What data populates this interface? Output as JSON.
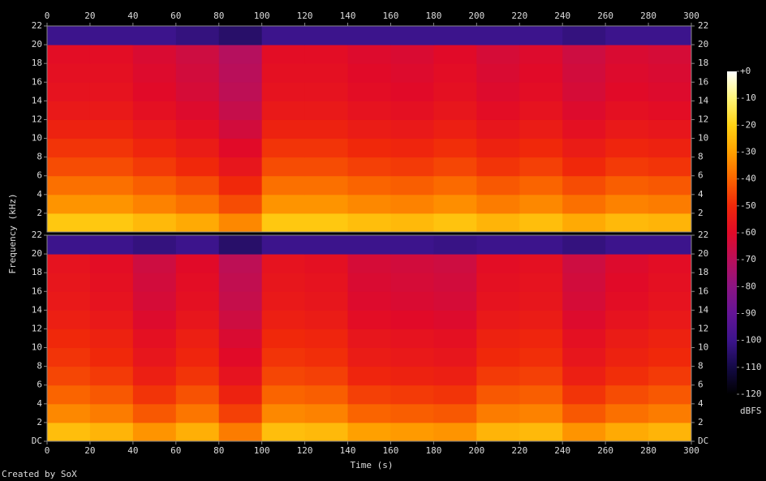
{
  "chart_data": [
    {
      "type": "heatmap",
      "xlim": [
        0,
        300
      ],
      "xticks": [
        0,
        20,
        40,
        60,
        80,
        100,
        120,
        140,
        160,
        180,
        200,
        220,
        240,
        260,
        280,
        300
      ],
      "ylim": [
        0,
        22
      ],
      "yticks": [
        2,
        4,
        6,
        8,
        10,
        12,
        14,
        16,
        18,
        20,
        22
      ],
      "xbins": [
        0,
        20,
        40,
        60,
        80,
        100,
        120,
        140,
        160,
        180,
        200,
        220,
        240,
        260,
        280,
        300
      ],
      "ybins": [
        0,
        2,
        4,
        6,
        8,
        10,
        12,
        14,
        16,
        18,
        20,
        22
      ],
      "values": [
        [
          -22,
          -22,
          -25,
          -28,
          -34,
          -22,
          -22,
          -24,
          -25,
          -23,
          -26,
          -24,
          -28,
          -25,
          -26
        ],
        [
          -32,
          -32,
          -35,
          -38,
          -44,
          -32,
          -32,
          -34,
          -35,
          -33,
          -36,
          -34,
          -38,
          -35,
          -36
        ],
        [
          -38,
          -38,
          -41,
          -44,
          -50,
          -38,
          -38,
          -40,
          -41,
          -39,
          -42,
          -40,
          -44,
          -41,
          -42
        ],
        [
          -44,
          -44,
          -47,
          -50,
          -56,
          -44,
          -44,
          -46,
          -47,
          -45,
          -48,
          -46,
          -50,
          -47,
          -48
        ],
        [
          -48,
          -48,
          -51,
          -54,
          -60,
          -48,
          -48,
          -50,
          -51,
          -49,
          -52,
          -50,
          -54,
          -51,
          -52
        ],
        [
          -52,
          -52,
          -55,
          -58,
          -64,
          -52,
          -52,
          -54,
          -55,
          -53,
          -56,
          -54,
          -58,
          -55,
          -56
        ],
        [
          -55,
          -55,
          -58,
          -61,
          -67,
          -55,
          -55,
          -57,
          -58,
          -56,
          -59,
          -57,
          -61,
          -58,
          -59
        ],
        [
          -57,
          -57,
          -60,
          -63,
          -69,
          -57,
          -57,
          -59,
          -60,
          -58,
          -61,
          -59,
          -63,
          -60,
          -61
        ],
        [
          -58,
          -58,
          -61,
          -64,
          -70,
          -58,
          -58,
          -60,
          -61,
          -59,
          -62,
          -60,
          -64,
          -61,
          -62
        ],
        [
          -59,
          -59,
          -62,
          -65,
          -71,
          -59,
          -59,
          -61,
          -62,
          -60,
          -63,
          -61,
          -65,
          -62,
          -63
        ],
        [
          -100,
          -100,
          -100,
          -102,
          -105,
          -100,
          -100,
          -100,
          -100,
          -100,
          -100,
          -100,
          -102,
          -100,
          -100
        ]
      ]
    },
    {
      "type": "heatmap",
      "xlim": [
        0,
        300
      ],
      "xticks": [
        0,
        20,
        40,
        60,
        80,
        100,
        120,
        140,
        160,
        180,
        200,
        220,
        240,
        260,
        280,
        300
      ],
      "ylim": [
        0,
        22
      ],
      "yticks": [
        {
          "value": 0,
          "label": "DC"
        },
        2,
        4,
        6,
        8,
        10,
        12,
        14,
        16,
        18,
        20,
        22
      ],
      "xbins": [
        0,
        20,
        40,
        60,
        80,
        100,
        120,
        140,
        160,
        180,
        200,
        220,
        240,
        260,
        280,
        300
      ],
      "ybins": [
        0,
        2,
        4,
        6,
        8,
        10,
        12,
        14,
        16,
        18,
        20,
        22
      ],
      "values": [
        [
          -24,
          -26,
          -32,
          -27,
          -36,
          -24,
          -25,
          -30,
          -31,
          -32,
          -26,
          -25,
          -32,
          -28,
          -26
        ],
        [
          -34,
          -36,
          -42,
          -37,
          -46,
          -34,
          -35,
          -40,
          -41,
          -42,
          -36,
          -35,
          -42,
          -38,
          -36
        ],
        [
          -40,
          -42,
          -48,
          -43,
          -52,
          -40,
          -41,
          -46,
          -47,
          -48,
          -42,
          -41,
          -48,
          -44,
          -42
        ],
        [
          -45,
          -47,
          -53,
          -48,
          -57,
          -45,
          -46,
          -51,
          -52,
          -53,
          -47,
          -46,
          -53,
          -49,
          -47
        ],
        [
          -48,
          -50,
          -56,
          -51,
          -60,
          -48,
          -49,
          -54,
          -55,
          -56,
          -50,
          -49,
          -56,
          -52,
          -50
        ],
        [
          -50,
          -52,
          -58,
          -53,
          -62,
          -50,
          -51,
          -56,
          -57,
          -58,
          -52,
          -51,
          -58,
          -54,
          -52
        ],
        [
          -53,
          -55,
          -61,
          -56,
          -65,
          -53,
          -54,
          -59,
          -60,
          -61,
          -55,
          -54,
          -61,
          -57,
          -55
        ],
        [
          -55,
          -57,
          -63,
          -58,
          -67,
          -55,
          -56,
          -61,
          -62,
          -63,
          -57,
          -56,
          -63,
          -59,
          -57
        ],
        [
          -56,
          -58,
          -64,
          -59,
          -68,
          -56,
          -57,
          -62,
          -63,
          -64,
          -58,
          -57,
          -64,
          -60,
          -58
        ],
        [
          -57,
          -59,
          -65,
          -60,
          -69,
          -57,
          -58,
          -63,
          -64,
          -65,
          -59,
          -58,
          -65,
          -61,
          -59
        ],
        [
          -100,
          -100,
          -102,
          -100,
          -105,
          -100,
          -100,
          -100,
          -100,
          -101,
          -100,
          -100,
          -102,
          -100,
          -100
        ]
      ]
    }
  ],
  "x_label": "Time (s)",
  "y_label": "Frequency (kHz)",
  "colorbar": {
    "label": "dBFS",
    "lim": [
      -120,
      0
    ],
    "ticks": [
      {
        "value": 0,
        "label": "+0"
      },
      -10,
      -20,
      -30,
      -40,
      -50,
      -60,
      -70,
      -80,
      -90,
      -100,
      -110,
      -120
    ]
  },
  "footer": "Created by SoX"
}
